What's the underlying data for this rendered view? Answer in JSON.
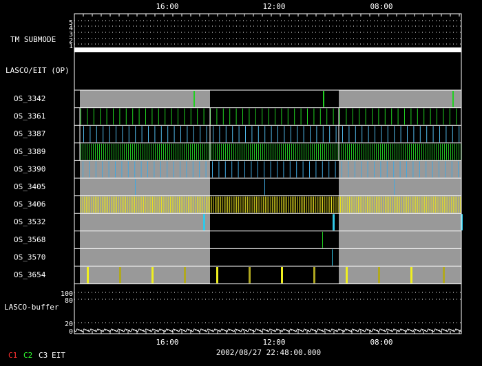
{
  "top_axis": [
    "16:00",
    "12:00",
    "08:00"
  ],
  "submode": {
    "label": "TM SUBMODE",
    "levels": [
      "5",
      "4",
      "3",
      "2",
      "1"
    ]
  },
  "section_label": "LASCO/EIT (OP)",
  "rows": [
    "OS_3342",
    "OS_3361",
    "OS_3387",
    "OS_3389",
    "OS_3390",
    "OS_3405",
    "OS_3406",
    "OS_3532",
    "OS_3568",
    "OS_3570",
    "OS_3654"
  ],
  "buffer": {
    "label": "LASCO-buffer",
    "levels": [
      "100",
      "80",
      "20",
      "0"
    ]
  },
  "bottom_axis": [
    "16:00",
    "12:00",
    "08:00"
  ],
  "timestamp": "2002/08/27 22:48:00.000",
  "legend": [
    "C1",
    "C2",
    "C3",
    "EIT"
  ]
}
